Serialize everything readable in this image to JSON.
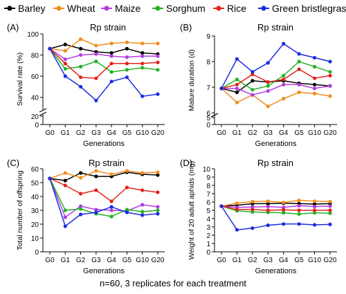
{
  "legend": {
    "items": [
      {
        "name": "Barley",
        "color": "#000000"
      },
      {
        "name": "Wheat",
        "color": "#F28C1E"
      },
      {
        "name": "Maize",
        "color": "#B13CE0"
      },
      {
        "name": "Sorghum",
        "color": "#23B223"
      },
      {
        "name": "Rice",
        "color": "#E3221B"
      },
      {
        "name": "Green bristlegrass",
        "color": "#1C2BE0"
      }
    ]
  },
  "footer_text": "n=60, 3 replicates for each treatment",
  "chart_data": [
    {
      "type": "line",
      "panel_label": "(A)",
      "title": "Rp strain",
      "xlabel": "Generations",
      "ylabel": "Survival rate (%)",
      "categories": [
        "G0",
        "G1",
        "G2",
        "G3",
        "G4",
        "G5",
        "G10",
        "G20"
      ],
      "y_ticks_lower": [
        "0",
        "20"
      ],
      "y_ticks_upper": [
        "40",
        "60",
        "80",
        "100"
      ],
      "ylim_lower": [
        0,
        20
      ],
      "ylim_upper": [
        30,
        100
      ],
      "axis_break": true,
      "series": [
        {
          "name": "Barley",
          "color": "#000000",
          "values": [
            86,
            90,
            86,
            83,
            82,
            86,
            82,
            81
          ]
        },
        {
          "name": "Wheat",
          "color": "#F28C1E",
          "values": [
            86,
            84,
            95,
            89,
            91,
            92,
            91,
            91
          ]
        },
        {
          "name": "Maize",
          "color": "#B13CE0",
          "values": [
            86,
            76,
            80,
            81,
            79,
            78,
            79,
            79
          ]
        },
        {
          "name": "Sorghum",
          "color": "#23B223",
          "values": [
            86,
            67,
            69,
            74,
            64,
            66,
            68,
            66
          ]
        },
        {
          "name": "Rice",
          "color": "#E3221B",
          "values": [
            86,
            72,
            59,
            58,
            72,
            72,
            72,
            73
          ]
        },
        {
          "name": "Green bristlegrass",
          "color": "#1C2BE0",
          "values": [
            86,
            60,
            50,
            37,
            55,
            59,
            41,
            43
          ]
        }
      ]
    },
    {
      "type": "line",
      "panel_label": "(B)",
      "title": "Rp strain",
      "xlabel": "Generations",
      "ylabel": "Mature duration (d)",
      "categories": [
        "G0",
        "G1",
        "G2",
        "G3",
        "G4",
        "G5",
        "G10",
        "G20"
      ],
      "y_ticks_lower": [
        "0",
        "5"
      ],
      "y_ticks_upper": [
        "6",
        "7",
        "8",
        "9"
      ],
      "ylim_lower": [
        0,
        5
      ],
      "ylim_upper": [
        6,
        9
      ],
      "axis_break": true,
      "series": [
        {
          "name": "Barley",
          "color": "#000000",
          "values": [
            6.95,
            6.8,
            7.25,
            7.2,
            7.25,
            7.15,
            7.1,
            7.05
          ]
        },
        {
          "name": "Wheat",
          "color": "#F28C1E",
          "values": [
            6.95,
            6.4,
            6.7,
            6.25,
            6.55,
            6.8,
            6.75,
            6.65
          ]
        },
        {
          "name": "Maize",
          "color": "#B13CE0",
          "values": [
            6.95,
            6.95,
            6.7,
            6.85,
            7.1,
            7.1,
            6.95,
            7.05
          ]
        },
        {
          "name": "Sorghum",
          "color": "#23B223",
          "values": [
            6.95,
            7.3,
            6.9,
            7.05,
            7.45,
            8.0,
            7.8,
            7.6
          ]
        },
        {
          "name": "Rice",
          "color": "#E3221B",
          "values": [
            6.95,
            7.1,
            7.5,
            7.2,
            7.3,
            7.7,
            7.35,
            7.45
          ]
        },
        {
          "name": "Green bristlegrass",
          "color": "#1C2BE0",
          "values": [
            6.95,
            8.1,
            7.6,
            7.95,
            8.7,
            8.3,
            8.15,
            8.0
          ]
        }
      ]
    },
    {
      "type": "line",
      "panel_label": "(C)",
      "title": "Rp strain",
      "xlabel": "Generations",
      "ylabel": "Total number of offspring",
      "categories": [
        "G0",
        "G1",
        "G2",
        "G3",
        "G4",
        "G5",
        "G10",
        "G20"
      ],
      "y_ticks": [
        "0",
        "10",
        "20",
        "30",
        "40",
        "50",
        "60"
      ],
      "ylim": [
        0,
        60
      ],
      "axis_break": false,
      "series": [
        {
          "name": "Barley",
          "color": "#000000",
          "values": [
            53,
            51.5,
            57,
            54.5,
            54.5,
            57.5,
            56,
            55.5
          ]
        },
        {
          "name": "Wheat",
          "color": "#F28C1E",
          "values": [
            53,
            57,
            53.5,
            58.5,
            56,
            58.5,
            57,
            57.5
          ]
        },
        {
          "name": "Maize",
          "color": "#B13CE0",
          "values": [
            53,
            25,
            33,
            30.5,
            30,
            29.5,
            34,
            32.5
          ]
        },
        {
          "name": "Sorghum",
          "color": "#23B223",
          "values": [
            53,
            30,
            31,
            27.5,
            25.5,
            30.5,
            29,
            30
          ]
        },
        {
          "name": "Rice",
          "color": "#E3221B",
          "values": [
            53,
            48,
            42,
            44.5,
            36.5,
            46.5,
            44.5,
            43
          ]
        },
        {
          "name": "Green bristlegrass",
          "color": "#1C2BE0",
          "values": [
            53,
            18.5,
            27,
            28.5,
            32.5,
            28.5,
            26.5,
            27.5
          ]
        }
      ]
    },
    {
      "type": "line",
      "panel_label": "(D)",
      "title": "Rp strain",
      "xlabel": "Generations",
      "ylabel": "Weight of 20 adult aphids (mg)",
      "categories": [
        "G0",
        "G1",
        "G2",
        "G3",
        "G4",
        "G5",
        "G10",
        "G20"
      ],
      "y_ticks": [
        "0",
        "1",
        "2",
        "3",
        "4",
        "5",
        "6",
        "7",
        "8",
        "9",
        "10"
      ],
      "ylim": [
        0,
        10
      ],
      "axis_break": false,
      "series": [
        {
          "name": "Barley",
          "color": "#000000",
          "values": [
            5.5,
            5.6,
            5.8,
            5.8,
            5.85,
            5.8,
            5.75,
            5.8
          ]
        },
        {
          "name": "Wheat",
          "color": "#F28C1E",
          "values": [
            5.5,
            5.85,
            6.05,
            6.1,
            5.95,
            6.2,
            6.1,
            6.05
          ]
        },
        {
          "name": "Maize",
          "color": "#B13CE0",
          "values": [
            5.5,
            5.35,
            5.4,
            5.45,
            5.35,
            5.55,
            5.45,
            5.5
          ]
        },
        {
          "name": "Sorghum",
          "color": "#23B223",
          "values": [
            5.5,
            4.95,
            4.8,
            4.75,
            4.7,
            4.55,
            4.7,
            4.65
          ]
        },
        {
          "name": "Rice",
          "color": "#E3221B",
          "values": [
            5.5,
            5.1,
            5.1,
            5.0,
            5.05,
            5.0,
            5.0,
            5.0
          ]
        },
        {
          "name": "Green bristlegrass",
          "color": "#1C2BE0",
          "values": [
            5.5,
            2.65,
            2.85,
            3.2,
            3.35,
            3.35,
            3.25,
            3.3
          ]
        }
      ]
    }
  ]
}
